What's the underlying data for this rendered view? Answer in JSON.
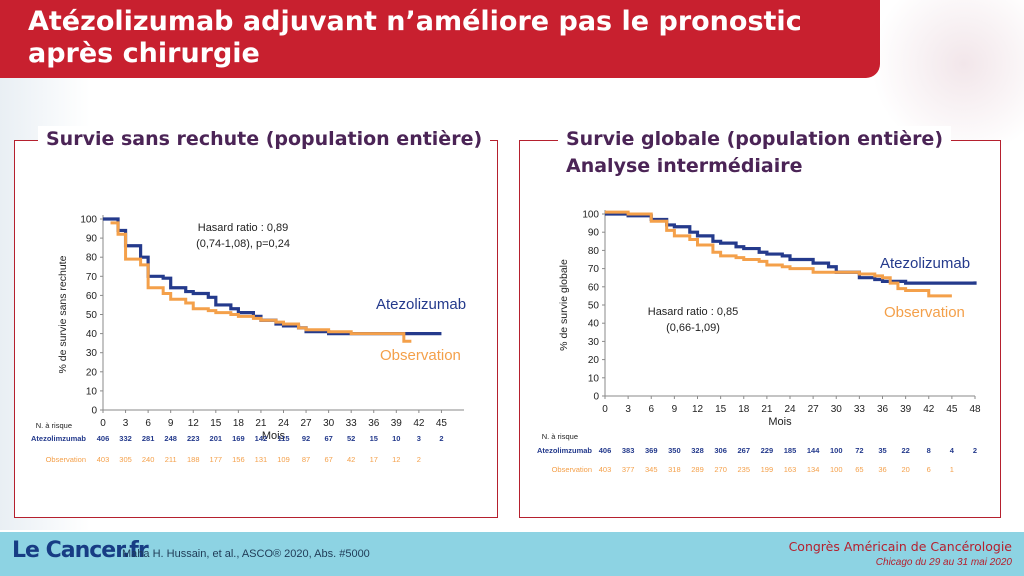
{
  "header": {
    "title": "Atézolizumab adjuvant n’améliore pas le pronostic\naprès chirurgie"
  },
  "colors": {
    "brand_red": "#c8202f",
    "atezolizumab": "#243a8c",
    "observation": "#f4a04a",
    "heading_purple": "#4b2456",
    "footer": "#8dd3e3"
  },
  "footer": {
    "logo": "Le Cancer.fr",
    "reference": "Maha H. Hussain, et al., ASCO® 2020, Abs. #5000",
    "congress_line1": "Congrès Américain de Cancérologie",
    "congress_line2": "Chicago du 29 au 31 mai 2020"
  },
  "chart_data": [
    {
      "type": "line",
      "title": "Survie sans rechute (population entière)",
      "subtitle": "",
      "xlabel": "Mois",
      "ylabel": "% de survie sans rechute",
      "xlim": [
        0,
        48
      ],
      "ylim": [
        0,
        100
      ],
      "xticks": [
        0,
        3,
        6,
        9,
        12,
        15,
        18,
        21,
        24,
        27,
        30,
        33,
        36,
        39,
        42,
        45
      ],
      "yticks": [
        0,
        10,
        20,
        30,
        40,
        50,
        60,
        70,
        80,
        90,
        100
      ],
      "annotation": [
        "Hasard ratio : 0,89",
        "(0,74-1,08), p=0,24"
      ],
      "series": [
        {
          "name": "Atezolizumab",
          "color": "#243a8c",
          "x": [
            0,
            2,
            3,
            5,
            6,
            8,
            9,
            11,
            12,
            14,
            15,
            17,
            18,
            20,
            21,
            23,
            24,
            26,
            27,
            30,
            33,
            36,
            39,
            42,
            45
          ],
          "y": [
            100,
            94,
            86,
            80,
            70,
            69,
            64,
            62,
            61,
            59,
            55,
            53,
            51,
            49,
            47,
            45,
            44,
            43,
            41,
            40,
            40,
            40,
            40,
            40,
            40
          ]
        },
        {
          "name": "Observation",
          "color": "#f4a04a",
          "x": [
            1,
            2,
            3,
            5,
            6,
            8,
            9,
            11,
            12,
            14,
            15,
            17,
            18,
            20,
            21,
            23,
            24,
            26,
            27,
            30,
            33,
            36,
            39,
            40,
            41
          ],
          "y": [
            98,
            92,
            79,
            76,
            64,
            61,
            58,
            56,
            53,
            52,
            51,
            50,
            49,
            48,
            47,
            46,
            45,
            43,
            42,
            41,
            40,
            40,
            40,
            36,
            36
          ]
        }
      ],
      "at_risk": {
        "header": "N. à risque",
        "x": [
          0,
          3,
          6,
          9,
          12,
          15,
          18,
          21,
          24,
          27,
          30,
          33,
          36,
          39,
          42,
          45
        ],
        "rows": [
          {
            "name": "Atezolimzumab",
            "values": [
              "406",
              "332",
              "281",
              "248",
              "223",
              "201",
              "169",
              "142",
              "115",
              "92",
              "67",
              "52",
              "15",
              "10",
              "3",
              "2"
            ]
          },
          {
            "name": "Observation",
            "values": [
              "403",
              "305",
              "240",
              "211",
              "188",
              "177",
              "156",
              "131",
              "109",
              "87",
              "67",
              "42",
              "17",
              "12",
              "2",
              ""
            ]
          }
        ]
      }
    },
    {
      "type": "line",
      "title": "Survie globale (population entière)",
      "subtitle": "Analyse intermédiaire",
      "xlabel": "Mois",
      "ylabel": "% de survie globale",
      "xlim": [
        0,
        48
      ],
      "ylim": [
        0,
        100
      ],
      "xticks": [
        0,
        3,
        6,
        9,
        12,
        15,
        18,
        21,
        24,
        27,
        30,
        33,
        36,
        39,
        42,
        45,
        48
      ],
      "yticks": [
        0,
        10,
        20,
        30,
        40,
        50,
        60,
        70,
        80,
        90,
        100
      ],
      "annotation": [
        "Hasard ratio : 0,85",
        "(0,66-1,09)"
      ],
      "series": [
        {
          "name": "Atezolizumab",
          "color": "#243a8c",
          "x": [
            0,
            1,
            3,
            6,
            8,
            9,
            11,
            12,
            14,
            15,
            17,
            18,
            20,
            21,
            23,
            24,
            27,
            29,
            30,
            32,
            33,
            35,
            36,
            39,
            42,
            45,
            48
          ],
          "y": [
            100,
            100,
            99,
            97,
            94,
            93,
            90,
            88,
            85,
            84,
            82,
            81,
            79,
            78,
            77,
            75,
            73,
            71,
            68,
            68,
            65,
            64,
            63,
            62,
            62,
            62,
            63
          ]
        },
        {
          "name": "Observation",
          "color": "#f4a04a",
          "x": [
            0,
            1,
            3,
            6,
            8,
            9,
            11,
            12,
            14,
            15,
            17,
            18,
            20,
            21,
            23,
            24,
            27,
            30,
            33,
            35,
            36,
            37,
            38,
            39,
            41,
            42,
            45
          ],
          "y": [
            101,
            101,
            100,
            96,
            91,
            88,
            86,
            83,
            79,
            77,
            76,
            75,
            74,
            72,
            71,
            70,
            68,
            68,
            67,
            66,
            65,
            62,
            59,
            58,
            58,
            55,
            55
          ]
        }
      ],
      "at_risk": {
        "header": "N. à risque",
        "x": [
          0,
          3,
          6,
          9,
          12,
          15,
          18,
          21,
          24,
          27,
          30,
          33,
          36,
          39,
          42,
          45,
          48
        ],
        "rows": [
          {
            "name": "Atezolimzumab",
            "values": [
              "406",
              "383",
              "369",
              "350",
              "328",
              "306",
              "267",
              "229",
              "185",
              "144",
              "100",
              "72",
              "35",
              "22",
              "8",
              "4",
              "2"
            ]
          },
          {
            "name": "Observation",
            "values": [
              "403",
              "377",
              "345",
              "318",
              "289",
              "270",
              "235",
              "199",
              "163",
              "134",
              "100",
              "65",
              "36",
              "20",
              "6",
              "1",
              ""
            ]
          }
        ]
      }
    }
  ]
}
